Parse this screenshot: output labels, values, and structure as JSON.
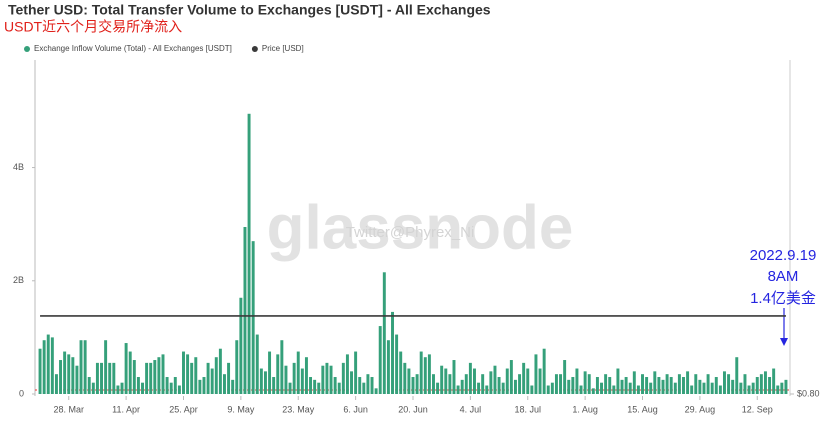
{
  "chart_data": {
    "type": "bar",
    "title": "Tether USD: Total Transfer Volume to Exchanges [USDT] - All Exchanges",
    "subtitle": "USDT近六个月交易所净流入",
    "watermark": "glassnode",
    "watermark_credit": "Twitter@Phyrex_Ni",
    "annotations": [
      "2022.9.19",
      "8AM",
      "1.4亿美金"
    ],
    "legend_position": "top-left",
    "categories": [
      null,
      null,
      null,
      null,
      null,
      null,
      null,
      "28. Mar",
      null,
      null,
      null,
      null,
      null,
      null,
      null,
      null,
      null,
      null,
      null,
      null,
      null,
      "11. Apr",
      null,
      null,
      null,
      null,
      null,
      null,
      null,
      null,
      null,
      null,
      null,
      null,
      null,
      "25. Apr",
      null,
      null,
      null,
      null,
      null,
      null,
      null,
      null,
      null,
      null,
      null,
      null,
      null,
      "9. May",
      null,
      null,
      null,
      null,
      null,
      null,
      null,
      null,
      null,
      null,
      null,
      null,
      null,
      "23. May",
      null,
      null,
      null,
      null,
      null,
      null,
      null,
      null,
      null,
      null,
      null,
      null,
      null,
      "6. Jun",
      null,
      null,
      null,
      null,
      null,
      null,
      null,
      null,
      null,
      null,
      null,
      null,
      null,
      "20. Jun",
      null,
      null,
      null,
      null,
      null,
      null,
      null,
      null,
      null,
      null,
      null,
      null,
      null,
      "4. Jul",
      null,
      null,
      null,
      null,
      null,
      null,
      null,
      null,
      null,
      null,
      null,
      null,
      null,
      "18. Jul",
      null,
      null,
      null,
      null,
      null,
      null,
      null,
      null,
      null,
      null,
      null,
      null,
      null,
      "1. Aug",
      null,
      null,
      null,
      null,
      null,
      null,
      null,
      null,
      null,
      null,
      null,
      null,
      null,
      "15. Aug",
      null,
      null,
      null,
      null,
      null,
      null,
      null,
      null,
      null,
      null,
      null,
      null,
      null,
      "29. Aug",
      null,
      null,
      null,
      null,
      null,
      null,
      null,
      null,
      null,
      null,
      null,
      null,
      null,
      "12. Sep",
      null,
      null,
      null,
      null,
      null,
      null,
      null
    ],
    "series": [
      {
        "name": "Exchange Inflow Volume (Total) - All Exchanges [USDT]",
        "color": "#35a07a",
        "values": [
          0.8,
          0.95,
          1.05,
          1.0,
          0.35,
          0.6,
          0.75,
          0.7,
          0.65,
          0.5,
          0.95,
          0.95,
          0.3,
          0.2,
          0.55,
          0.55,
          0.95,
          0.55,
          0.55,
          0.15,
          0.2,
          0.9,
          0.75,
          0.6,
          0.3,
          0.2,
          0.55,
          0.55,
          0.6,
          0.65,
          0.7,
          0.3,
          0.2,
          0.3,
          0.15,
          0.75,
          0.7,
          0.55,
          0.65,
          0.25,
          0.3,
          0.55,
          0.45,
          0.65,
          0.8,
          0.35,
          0.55,
          0.25,
          0.95,
          1.7,
          2.95,
          4.95,
          2.7,
          1.05,
          0.45,
          0.4,
          0.75,
          0.3,
          0.7,
          0.95,
          0.5,
          0.2,
          0.55,
          0.75,
          0.45,
          0.65,
          0.3,
          0.25,
          0.2,
          0.5,
          0.55,
          0.5,
          0.3,
          0.2,
          0.55,
          0.7,
          0.4,
          0.75,
          0.3,
          0.2,
          0.35,
          0.3,
          0.1,
          1.2,
          2.15,
          0.95,
          1.45,
          1.05,
          0.75,
          0.55,
          0.45,
          0.3,
          0.35,
          0.75,
          0.65,
          0.7,
          0.35,
          0.2,
          0.5,
          0.45,
          0.35,
          0.6,
          0.15,
          0.25,
          0.35,
          0.55,
          0.45,
          0.2,
          0.35,
          0.15,
          0.4,
          0.5,
          0.3,
          0.2,
          0.45,
          0.6,
          0.25,
          0.35,
          0.55,
          0.45,
          0.15,
          0.7,
          0.45,
          0.8,
          0.15,
          0.2,
          0.35,
          0.35,
          0.6,
          0.25,
          0.3,
          0.45,
          0.15,
          0.4,
          0.35,
          0.1,
          0.3,
          0.2,
          0.35,
          0.3,
          0.15,
          0.45,
          0.25,
          0.3,
          0.2,
          0.4,
          0.15,
          0.35,
          0.3,
          0.2,
          0.4,
          0.3,
          0.25,
          0.35,
          0.3,
          0.2,
          0.35,
          0.3,
          0.4,
          0.15,
          0.35,
          0.25,
          0.2,
          0.35,
          0.2,
          0.3,
          0.15,
          0.4,
          0.35,
          0.25,
          0.65,
          0.2,
          0.35,
          0.15,
          0.2,
          0.3,
          0.35,
          0.4,
          0.3,
          0.45,
          0.15,
          0.2,
          0.25
        ]
      },
      {
        "name": "Price [USD]",
        "color": "#3a3a3a",
        "type": "line",
        "axis": "y2",
        "values": [
          1,
          1,
          1,
          1,
          1,
          1,
          1,
          1,
          1,
          1,
          1,
          1,
          1,
          1,
          1,
          1,
          1,
          1,
          1,
          1,
          1,
          1,
          1,
          1,
          1,
          1,
          1,
          1,
          1,
          1,
          1,
          1,
          1,
          1,
          1,
          1,
          1,
          1,
          1,
          1,
          1,
          1,
          1,
          1,
          1,
          1,
          1,
          1,
          1,
          1,
          1,
          1,
          1,
          1,
          1,
          1,
          1,
          1,
          1,
          1,
          1,
          1,
          1,
          1,
          1,
          1,
          1,
          1,
          1,
          1,
          1,
          1,
          1,
          1,
          1,
          1,
          1,
          1,
          1,
          1,
          1,
          1,
          1,
          1,
          1,
          1,
          1,
          1,
          1,
          1,
          1,
          1,
          1,
          1,
          1,
          1,
          1,
          1,
          1,
          1,
          1,
          1,
          1,
          1,
          1,
          1,
          1,
          1,
          1,
          1,
          1,
          1,
          1,
          1,
          1,
          1,
          1,
          1,
          1,
          1,
          1,
          1,
          1,
          1,
          1,
          1,
          1,
          1,
          1,
          1,
          1,
          1,
          1,
          1,
          1,
          1,
          1,
          1,
          1,
          1,
          1,
          1,
          1,
          1,
          1,
          1,
          1,
          1,
          1,
          1,
          1,
          1,
          1,
          1,
          1,
          1,
          1,
          1,
          1,
          1,
          1,
          1,
          1,
          1,
          1,
          1,
          1,
          1,
          1,
          1,
          1,
          1,
          1,
          1,
          1,
          1,
          1,
          1,
          1,
          1,
          1,
          1,
          1
        ]
      }
    ],
    "ylim": [
      0,
      5.9
    ],
    "yticks": [
      0,
      {
        "value": 2,
        "label": "2B"
      },
      {
        "value": 4,
        "label": "4B"
      }
    ],
    "y2lim": [
      0.8,
      1.656
    ],
    "y2ticks": [
      {
        "value": 0.8,
        "label": "$0.80"
      }
    ]
  }
}
